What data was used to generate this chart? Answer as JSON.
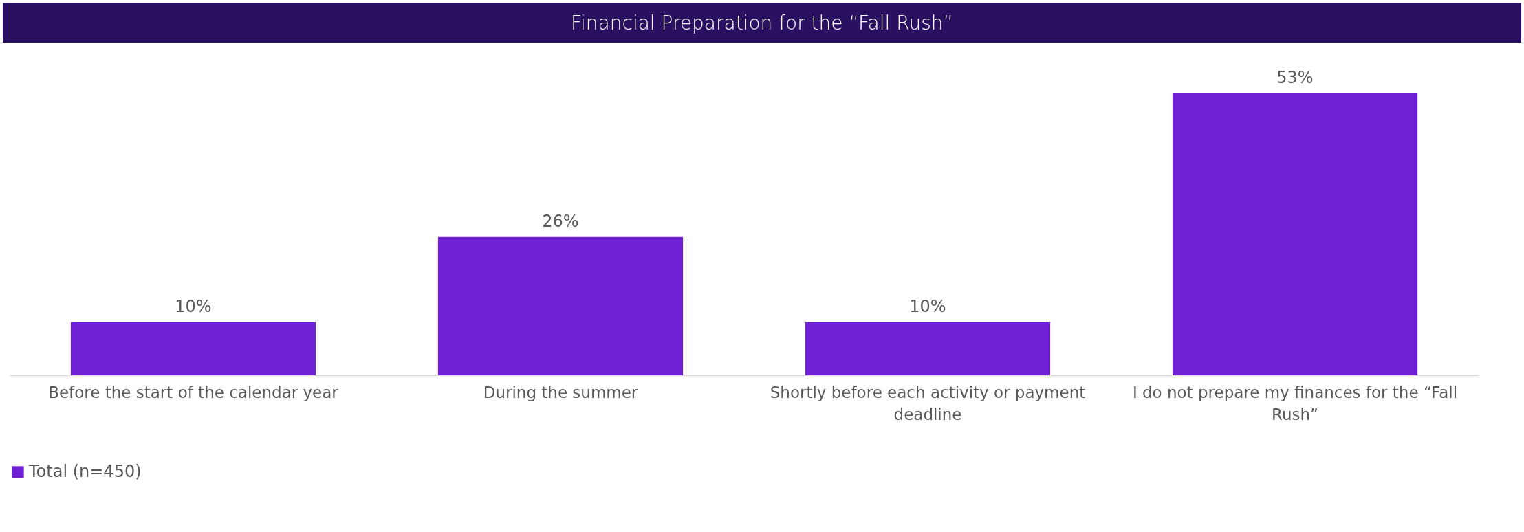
{
  "chart_data": {
    "type": "bar",
    "title": "Financial Preparation for the “Fall Rush”",
    "categories": [
      "Before the start of the calendar year",
      "During the summer",
      "Shortly before each activity or payment deadline",
      "I do not prepare my finances for the “Fall Rush”"
    ],
    "series": [
      {
        "name": "Total (n=450)",
        "color": "#6f1fd4",
        "values": [
          10,
          26,
          10,
          53
        ],
        "value_labels": [
          "10%",
          "26%",
          "10%",
          "53%"
        ]
      }
    ],
    "legend": "bottom"
  }
}
